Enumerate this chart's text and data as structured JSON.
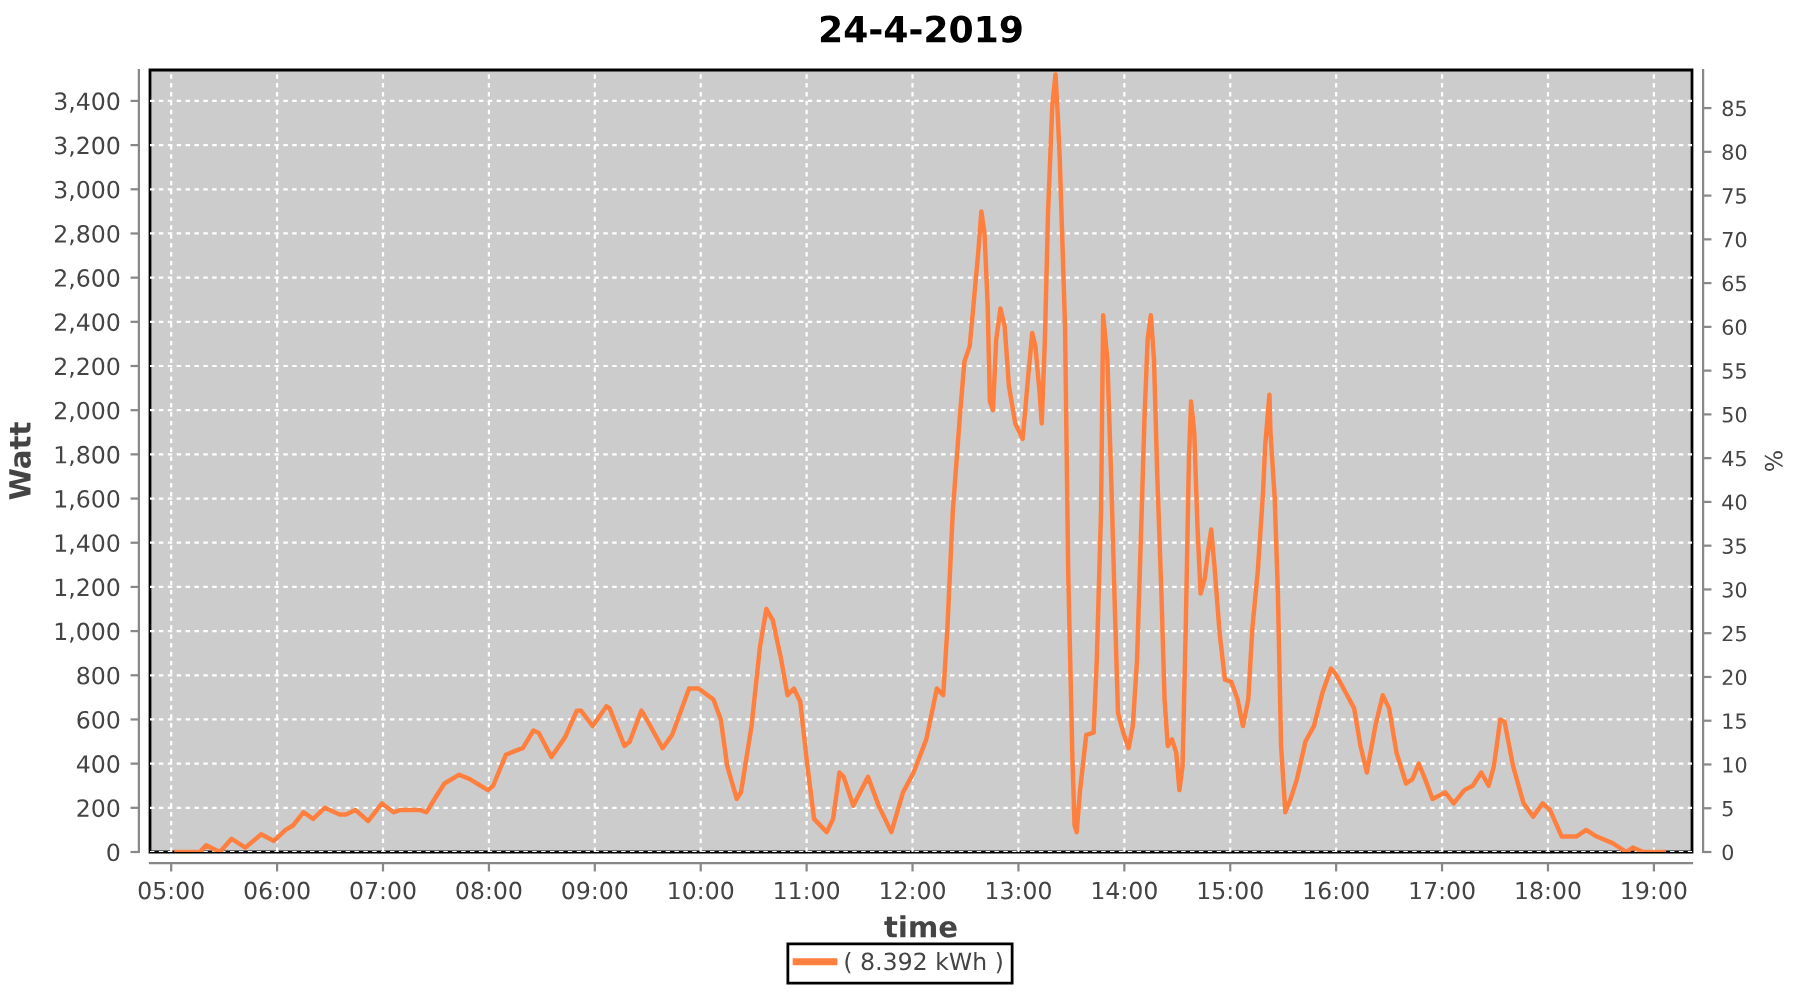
{
  "chart_data": {
    "type": "line",
    "title": "24-4-2019",
    "xlabel": "time",
    "ylabel": "Watt",
    "y2label": "%",
    "x": [
      5.05,
      5.27,
      5.33,
      5.46,
      5.57,
      5.7,
      5.85,
      5.97,
      6.08,
      6.15,
      6.25,
      6.34,
      6.45,
      6.59,
      6.65,
      6.74,
      6.86,
      6.99,
      7.1,
      7.16,
      7.35,
      7.41,
      7.5,
      7.58,
      7.72,
      7.82,
      7.99,
      8.04,
      8.16,
      8.26,
      8.32,
      8.42,
      8.47,
      8.59,
      8.72,
      8.83,
      8.87,
      8.98,
      9.11,
      9.14,
      9.28,
      9.33,
      9.44,
      9.49,
      9.64,
      9.73,
      9.89,
      9.98,
      10.12,
      10.19,
      10.25,
      10.34,
      10.38,
      10.48,
      10.56,
      10.62,
      10.68,
      10.76,
      10.82,
      10.88,
      10.94,
      11.0,
      11.07,
      11.19,
      11.25,
      11.31,
      11.35,
      11.44,
      11.58,
      11.68,
      11.8,
      11.91,
      12.01,
      12.13,
      12.23,
      12.29,
      12.33,
      12.38,
      12.45,
      12.49,
      12.54,
      12.58,
      12.62,
      12.65,
      12.68,
      12.71,
      12.73,
      12.76,
      12.79,
      12.83,
      12.87,
      12.91,
      12.97,
      13.04,
      13.09,
      13.13,
      13.16,
      13.2,
      13.22,
      13.25,
      13.28,
      13.32,
      13.35,
      13.37,
      13.39,
      13.44,
      13.47,
      13.51,
      13.53,
      13.55,
      13.58,
      13.64,
      13.71,
      13.74,
      13.78,
      13.8,
      13.84,
      13.88,
      13.91,
      13.94,
      13.99,
      14.04,
      14.08,
      14.12,
      14.16,
      14.19,
      14.22,
      14.25,
      14.28,
      14.31,
      14.35,
      14.38,
      14.41,
      14.45,
      14.49,
      14.52,
      14.55,
      14.58,
      14.61,
      14.63,
      14.66,
      14.69,
      14.72,
      14.76,
      14.79,
      14.82,
      14.85,
      14.9,
      14.95,
      15.01,
      15.07,
      15.12,
      15.17,
      15.21,
      15.26,
      15.31,
      15.33,
      15.37,
      15.38,
      15.42,
      15.45,
      15.48,
      15.52,
      15.57,
      15.63,
      15.71,
      15.79,
      15.87,
      15.95,
      15.99,
      16.07,
      16.17,
      16.23,
      16.29,
      16.37,
      16.44,
      16.5,
      16.57,
      16.66,
      16.72,
      16.78,
      16.84,
      16.91,
      17.03,
      17.11,
      17.21,
      17.29,
      17.37,
      17.44,
      17.49,
      17.55,
      17.59,
      17.67,
      17.77,
      17.86,
      17.95,
      18.02,
      18.13,
      18.27,
      18.36,
      18.46,
      18.61,
      18.74,
      18.8,
      18.9,
      19.09
    ],
    "series": [
      {
        "name": "( 8.392 kWh )",
        "color": "#ff7f3f",
        "values": [
          0,
          0,
          30,
          0,
          60,
          20,
          80,
          50,
          100,
          120,
          180,
          150,
          200,
          170,
          170,
          190,
          140,
          220,
          180,
          190,
          190,
          180,
          250,
          310,
          350,
          330,
          280,
          300,
          440,
          460,
          470,
          550,
          540,
          430,
          520,
          640,
          640,
          570,
          660,
          650,
          480,
          500,
          640,
          600,
          470,
          530,
          740,
          740,
          690,
          600,
          390,
          240,
          270,
          570,
          930,
          1100,
          1050,
          870,
          710,
          740,
          680,
          420,
          150,
          90,
          150,
          360,
          340,
          210,
          340,
          210,
          90,
          270,
          360,
          510,
          740,
          710,
          1020,
          1540,
          1990,
          2220,
          2290,
          2500,
          2710,
          2900,
          2800,
          2470,
          2040,
          2000,
          2320,
          2460,
          2380,
          2110,
          1940,
          1870,
          2140,
          2350,
          2290,
          2080,
          1940,
          2320,
          2900,
          3380,
          3520,
          3350,
          3140,
          2380,
          1270,
          420,
          120,
          90,
          270,
          530,
          540,
          870,
          1540,
          2430,
          2230,
          1630,
          1110,
          630,
          540,
          470,
          570,
          870,
          1480,
          1960,
          2320,
          2430,
          2230,
          1720,
          1170,
          690,
          480,
          510,
          450,
          280,
          390,
          1020,
          1780,
          2040,
          1900,
          1480,
          1170,
          1240,
          1360,
          1460,
          1300,
          990,
          780,
          770,
          690,
          570,
          690,
          1020,
          1270,
          1630,
          1840,
          2070,
          1900,
          1600,
          1170,
          480,
          180,
          240,
          330,
          500,
          570,
          720,
          830,
          810,
          740,
          650,
          480,
          360,
          570,
          710,
          650,
          450,
          310,
          330,
          400,
          330,
          240,
          270,
          220,
          280,
          300,
          360,
          300,
          390,
          600,
          590,
          390,
          220,
          160,
          220,
          190,
          70,
          70,
          100,
          70,
          40,
          0,
          20,
          0,
          0
        ]
      }
    ],
    "xlim": [
      4.8,
      19.36
    ],
    "xticks": [
      {
        "value": 5,
        "label": "05:00"
      },
      {
        "value": 6,
        "label": "06:00"
      },
      {
        "value": 7,
        "label": "07:00"
      },
      {
        "value": 8,
        "label": "08:00"
      },
      {
        "value": 9,
        "label": "09:00"
      },
      {
        "value": 10,
        "label": "10:00"
      },
      {
        "value": 11,
        "label": "11:00"
      },
      {
        "value": 12,
        "label": "12:00"
      },
      {
        "value": 13,
        "label": "13:00"
      },
      {
        "value": 14,
        "label": "14:00"
      },
      {
        "value": 15,
        "label": "15:00"
      },
      {
        "value": 16,
        "label": "16:00"
      },
      {
        "value": 17,
        "label": "17:00"
      },
      {
        "value": 18,
        "label": "18:00"
      },
      {
        "value": 19,
        "label": "19:00"
      }
    ],
    "ylim": [
      0,
      3540
    ],
    "yticks": [
      0,
      200,
      400,
      600,
      800,
      {
        "value": 1000,
        "label": "1,000"
      },
      {
        "value": 1200,
        "label": "1,200"
      },
      {
        "value": 1400,
        "label": "1,400"
      },
      {
        "value": 1600,
        "label": "1,600"
      },
      {
        "value": 1800,
        "label": "1,800"
      },
      {
        "value": 2000,
        "label": "2,000"
      },
      {
        "value": 2200,
        "label": "2,200"
      },
      {
        "value": 2400,
        "label": "2,400"
      },
      {
        "value": 2600,
        "label": "2,600"
      },
      {
        "value": 2800,
        "label": "2,800"
      },
      {
        "value": 3000,
        "label": "3,000"
      },
      {
        "value": 3200,
        "label": "3,200"
      },
      {
        "value": 3400,
        "label": "3,400"
      }
    ],
    "y2lim": [
      0,
      89.35
    ],
    "y2ticks": [
      0,
      5,
      10,
      15,
      20,
      25,
      30,
      35,
      40,
      45,
      50,
      55,
      60,
      65,
      70,
      75,
      80,
      85
    ],
    "grid": true,
    "legend": "bottom"
  }
}
